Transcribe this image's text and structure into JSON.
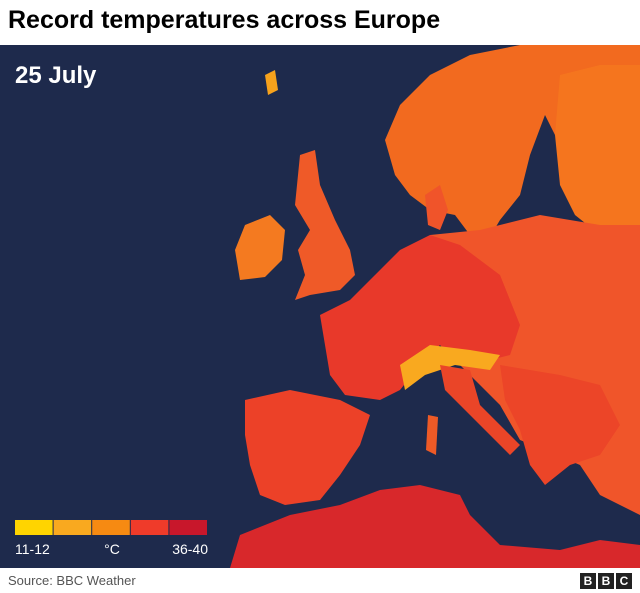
{
  "header": {
    "title": "Record temperatures across Europe"
  },
  "map": {
    "date": "25 July"
  },
  "legend": {
    "colors": [
      "#ffd400",
      "#f9a91f",
      "#f68a12",
      "#ef3b2a",
      "#c8172b"
    ],
    "low_label": "11-12",
    "unit_label": "°C",
    "high_label": "36-40"
  },
  "footer": {
    "source": "Source: BBC Weather",
    "logo": [
      "B",
      "B",
      "C"
    ]
  }
}
